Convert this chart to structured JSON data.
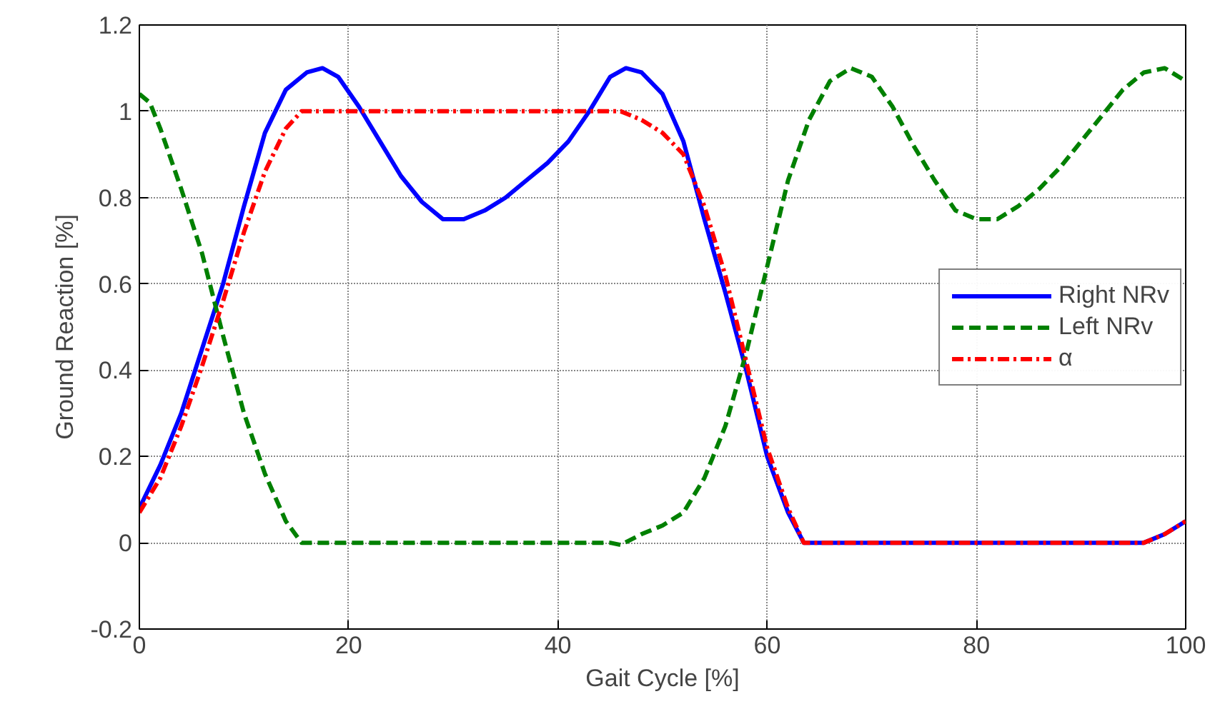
{
  "chart_data": {
    "type": "line",
    "xlabel": "Gait Cycle [%]",
    "ylabel": "Ground Reaction [%]",
    "xlim": [
      0,
      100
    ],
    "xticks": [
      0,
      20,
      40,
      60,
      80,
      100
    ],
    "ylim": [
      -0.2,
      1.2
    ],
    "yticks": [
      -0.2,
      0,
      0.2,
      0.4,
      0.6,
      0.8,
      1,
      1.2
    ],
    "grid": true,
    "legend": "right",
    "series": [
      {
        "name": "Right NRv",
        "color": "#0000ff",
        "line_style": "solid",
        "x": [
          0,
          2,
          4,
          6,
          8,
          10,
          12,
          14,
          16,
          17.5,
          19,
          21,
          23,
          25,
          27,
          29,
          31,
          33,
          35,
          37,
          39,
          41,
          43,
          45,
          46.5,
          48,
          50,
          52,
          54,
          56,
          58,
          60,
          62,
          63.5,
          70,
          80,
          90,
          96,
          98,
          100
        ],
        "values": [
          0.08,
          0.18,
          0.3,
          0.45,
          0.6,
          0.78,
          0.95,
          1.05,
          1.09,
          1.1,
          1.08,
          1.01,
          0.93,
          0.85,
          0.79,
          0.75,
          0.75,
          0.77,
          0.8,
          0.84,
          0.88,
          0.93,
          1.0,
          1.08,
          1.1,
          1.09,
          1.04,
          0.93,
          0.75,
          0.58,
          0.4,
          0.2,
          0.07,
          0,
          0,
          0,
          0,
          0,
          0.02,
          0.05
        ]
      },
      {
        "name": "Left NRv",
        "color": "#008000",
        "line_style": "dashed",
        "x": [
          0,
          1,
          2,
          4,
          6,
          8,
          10,
          12,
          14,
          15.5,
          45,
          46,
          48,
          50,
          52,
          54,
          56,
          58,
          60,
          62,
          64,
          66,
          68,
          70,
          72,
          74,
          76,
          78,
          80,
          82,
          84,
          86,
          88,
          90,
          92,
          94,
          96,
          98,
          100
        ],
        "values": [
          1.04,
          1.02,
          0.96,
          0.82,
          0.67,
          0.48,
          0.3,
          0.16,
          0.05,
          0,
          0,
          -0.005,
          0.02,
          0.04,
          0.07,
          0.15,
          0.27,
          0.44,
          0.64,
          0.84,
          0.98,
          1.07,
          1.1,
          1.08,
          1.01,
          0.92,
          0.84,
          0.77,
          0.75,
          0.75,
          0.78,
          0.82,
          0.87,
          0.93,
          0.99,
          1.05,
          1.09,
          1.1,
          1.07
        ]
      },
      {
        "name": "α",
        "color": "#ff0000",
        "line_style": "dashdot",
        "x": [
          0,
          2,
          4,
          6,
          8,
          10,
          12,
          14,
          15.5,
          46,
          48,
          50,
          52,
          54,
          56,
          58,
          60,
          62,
          63.5,
          96,
          98,
          100
        ],
        "values": [
          0.07,
          0.15,
          0.27,
          0.41,
          0.56,
          0.72,
          0.86,
          0.96,
          1.0,
          1.0,
          0.98,
          0.95,
          0.9,
          0.78,
          0.62,
          0.42,
          0.22,
          0.08,
          0,
          0,
          0.02,
          0.05
        ]
      }
    ]
  }
}
